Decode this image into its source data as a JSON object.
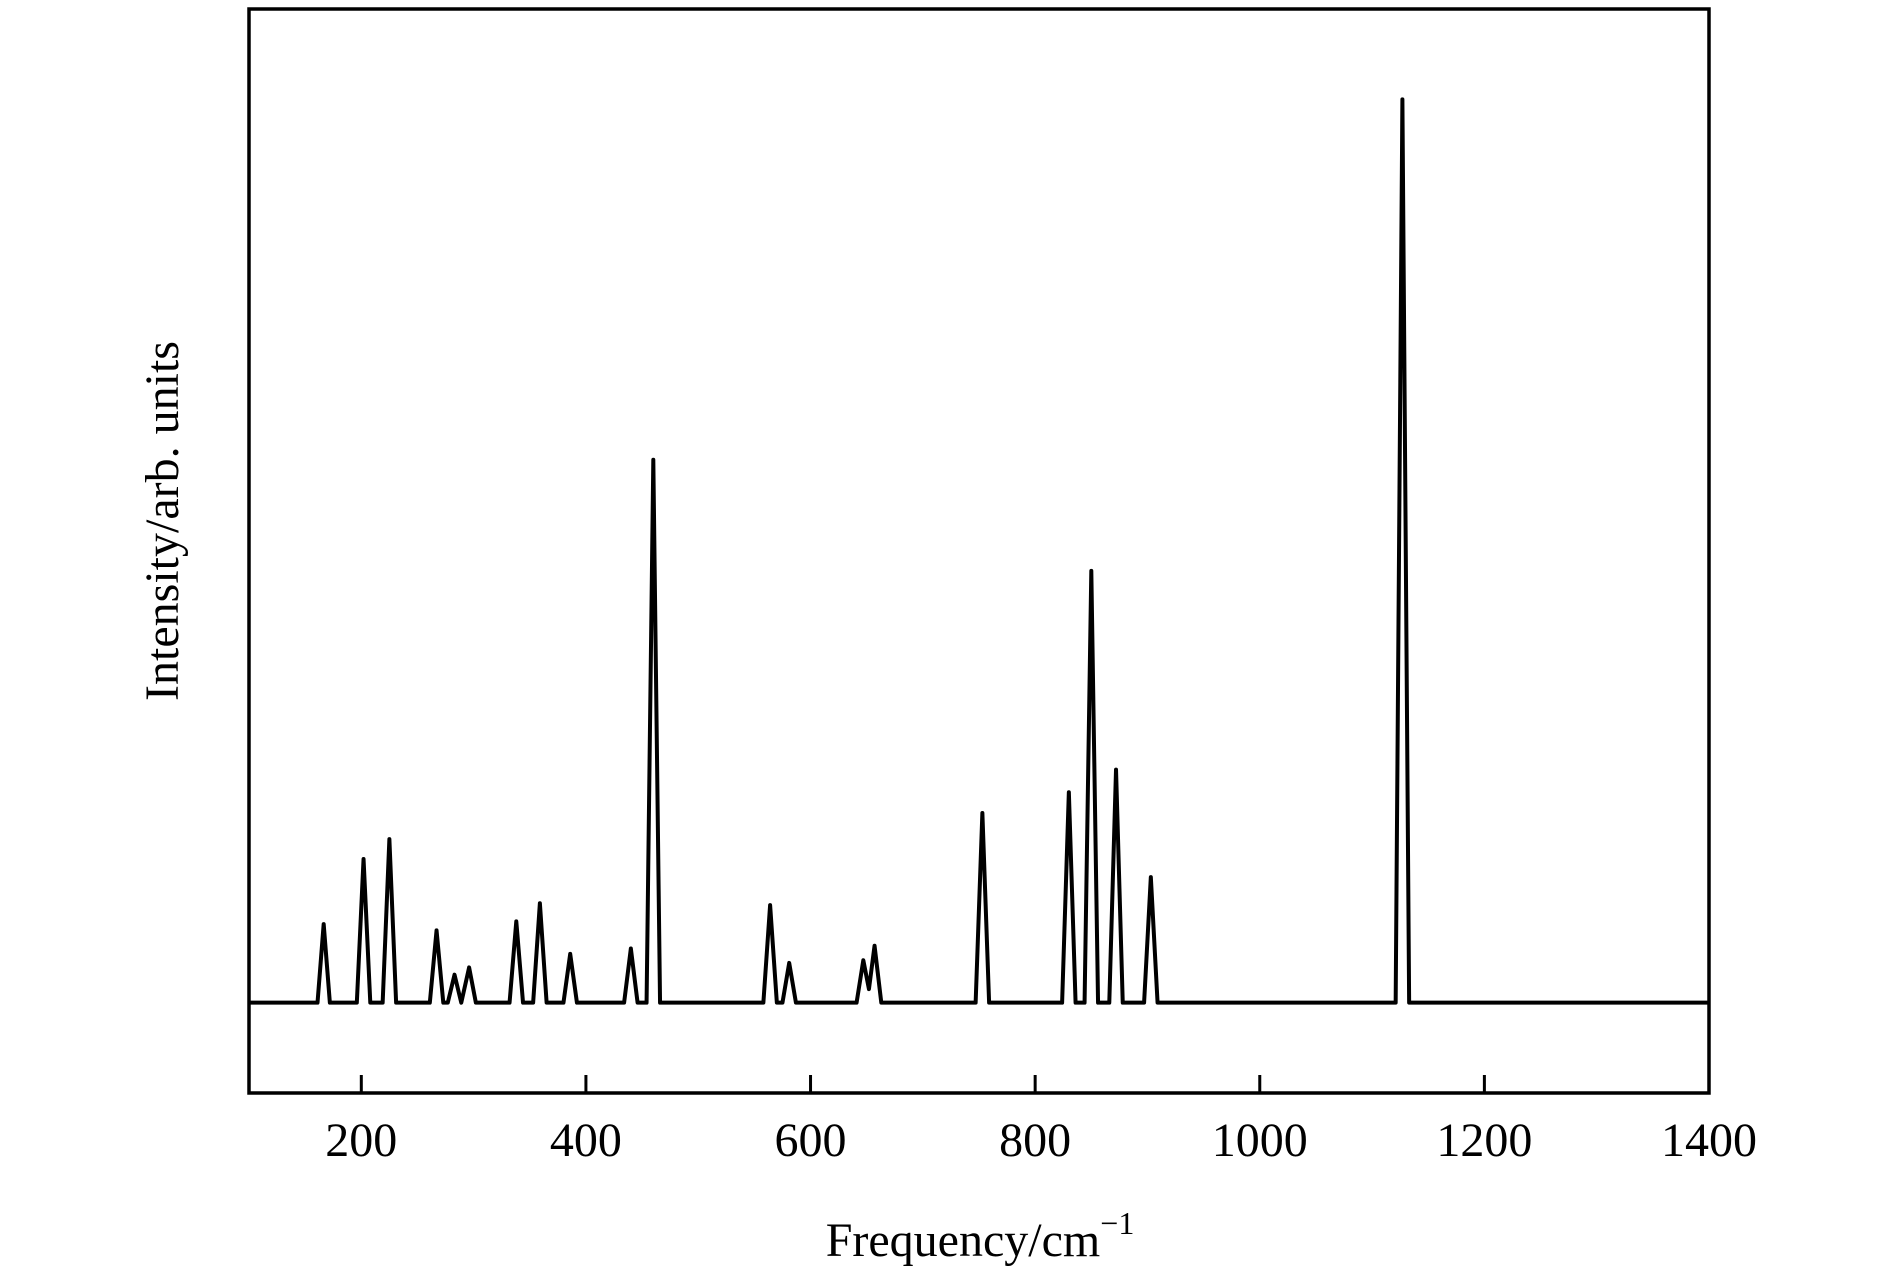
{
  "chart_data": {
    "type": "line",
    "xlabel": "Frequency/cm",
    "xlabel_superscript": "−1",
    "ylabel": "Intensity/arb. units",
    "x": [
      100,
      161,
      166.5,
      172,
      196,
      202,
      208,
      219,
      225,
      231,
      261,
      267,
      273,
      277,
      283,
      289,
      296,
      302,
      332,
      338,
      344,
      353,
      359,
      365,
      380,
      386,
      392,
      434,
      440,
      446,
      454,
      460,
      466,
      558,
      564,
      570,
      575,
      581,
      587,
      641,
      647,
      652,
      657,
      663,
      747,
      753,
      759,
      824,
      830,
      836,
      844,
      850,
      856,
      866,
      872,
      878,
      897,
      903,
      909,
      1121,
      1127,
      1133,
      1400
    ],
    "values": [
      0,
      0,
      0.087,
      0,
      0,
      0.159,
      0,
      0,
      0.181,
      0,
      0,
      0.08,
      0,
      0,
      0.031,
      0,
      0.039,
      0,
      0,
      0.09,
      0,
      0,
      0.11,
      0,
      0,
      0.054,
      0,
      0,
      0.06,
      0,
      0,
      0.601,
      0,
      0,
      0.108,
      0,
      0,
      0.044,
      0,
      0,
      0.047,
      0.015,
      0.063,
      0,
      0,
      0.21,
      0,
      0,
      0.233,
      0,
      0,
      0.478,
      0,
      0,
      0.258,
      0,
      0,
      0.139,
      0,
      0,
      1.0,
      0,
      0
    ],
    "color": "#000000",
    "xlim": [
      100,
      1400
    ],
    "xticks": [
      200,
      400,
      600,
      800,
      1000,
      1200,
      1400
    ],
    "ylim": [
      -0.1,
      1.1
    ],
    "grid": false
  }
}
